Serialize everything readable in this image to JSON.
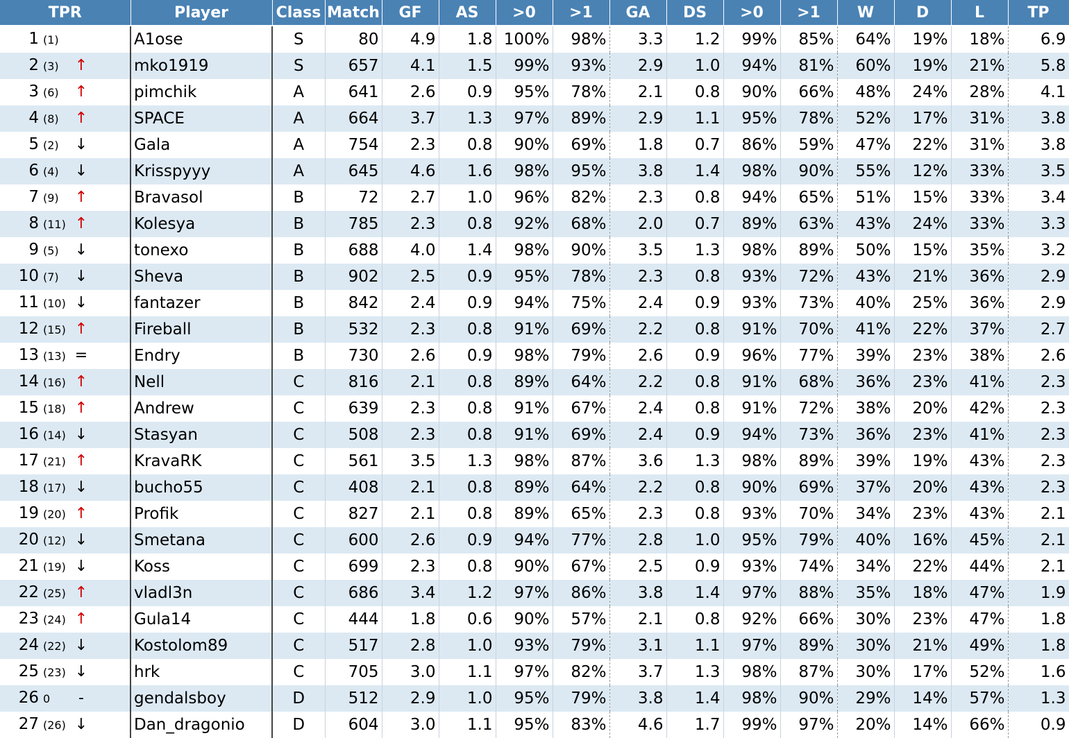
{
  "headers": [
    "TPR",
    "Player",
    "Class",
    "Match",
    "GF",
    "AS",
    ">0",
    ">1",
    "GA",
    "DS",
    ">0",
    ">1",
    "W",
    "D",
    "L",
    "TP"
  ],
  "rows": [
    {
      "rank": "1",
      "prev": "(1)",
      "trend": "",
      "trend_type": "none",
      "player": "A1ose",
      "class": "S",
      "match": "80",
      "gf": "4.9",
      "as": "1.8",
      "gf0": "100%",
      "gf1": "98%",
      "ga": "3.3",
      "ds": "1.2",
      "ga0": "99%",
      "ga1": "85%",
      "w": "64%",
      "d": "19%",
      "l": "18%",
      "tp": "6.9"
    },
    {
      "rank": "2",
      "prev": "(3)",
      "trend": "↑",
      "trend_type": "up",
      "player": "mko1919",
      "class": "S",
      "match": "657",
      "gf": "4.1",
      "as": "1.5",
      "gf0": "99%",
      "gf1": "93%",
      "ga": "2.9",
      "ds": "1.0",
      "ga0": "94%",
      "ga1": "81%",
      "w": "60%",
      "d": "19%",
      "l": "21%",
      "tp": "5.8"
    },
    {
      "rank": "3",
      "prev": "(6)",
      "trend": "↑",
      "trend_type": "up",
      "player": "pimchik",
      "class": "A",
      "match": "641",
      "gf": "2.6",
      "as": "0.9",
      "gf0": "95%",
      "gf1": "78%",
      "ga": "2.1",
      "ds": "0.8",
      "ga0": "90%",
      "ga1": "66%",
      "w": "48%",
      "d": "24%",
      "l": "28%",
      "tp": "4.1"
    },
    {
      "rank": "4",
      "prev": "(8)",
      "trend": "↑",
      "trend_type": "up",
      "player": "SPACE",
      "class": "A",
      "match": "664",
      "gf": "3.7",
      "as": "1.3",
      "gf0": "97%",
      "gf1": "89%",
      "ga": "2.9",
      "ds": "1.1",
      "ga0": "95%",
      "ga1": "78%",
      "w": "52%",
      "d": "17%",
      "l": "31%",
      "tp": "3.8"
    },
    {
      "rank": "5",
      "prev": "(2)",
      "trend": "↓",
      "trend_type": "down",
      "player": "Gala",
      "class": "A",
      "match": "754",
      "gf": "2.3",
      "as": "0.8",
      "gf0": "90%",
      "gf1": "69%",
      "ga": "1.8",
      "ds": "0.7",
      "ga0": "86%",
      "ga1": "59%",
      "w": "47%",
      "d": "22%",
      "l": "31%",
      "tp": "3.8"
    },
    {
      "rank": "6",
      "prev": "(4)",
      "trend": "↓",
      "trend_type": "down",
      "player": "Krisspyyy",
      "class": "A",
      "match": "645",
      "gf": "4.6",
      "as": "1.6",
      "gf0": "98%",
      "gf1": "95%",
      "ga": "3.8",
      "ds": "1.4",
      "ga0": "98%",
      "ga1": "90%",
      "w": "55%",
      "d": "12%",
      "l": "33%",
      "tp": "3.5"
    },
    {
      "rank": "7",
      "prev": "(9)",
      "trend": "↑",
      "trend_type": "up",
      "player": "Bravasol",
      "class": "B",
      "match": "72",
      "gf": "2.7",
      "as": "1.0",
      "gf0": "96%",
      "gf1": "82%",
      "ga": "2.3",
      "ds": "0.8",
      "ga0": "94%",
      "ga1": "65%",
      "w": "51%",
      "d": "15%",
      "l": "33%",
      "tp": "3.4"
    },
    {
      "rank": "8",
      "prev": "(11)",
      "trend": "↑",
      "trend_type": "up",
      "player": "Kolesya",
      "class": "B",
      "match": "785",
      "gf": "2.3",
      "as": "0.8",
      "gf0": "92%",
      "gf1": "68%",
      "ga": "2.0",
      "ds": "0.7",
      "ga0": "89%",
      "ga1": "63%",
      "w": "43%",
      "d": "24%",
      "l": "33%",
      "tp": "3.3"
    },
    {
      "rank": "9",
      "prev": "(5)",
      "trend": "↓",
      "trend_type": "down",
      "player": "tonexo",
      "class": "B",
      "match": "688",
      "gf": "4.0",
      "as": "1.4",
      "gf0": "98%",
      "gf1": "90%",
      "ga": "3.5",
      "ds": "1.3",
      "ga0": "98%",
      "ga1": "89%",
      "w": "50%",
      "d": "15%",
      "l": "35%",
      "tp": "3.2"
    },
    {
      "rank": "10",
      "prev": "(7)",
      "trend": "↓",
      "trend_type": "down",
      "player": "Sheva",
      "class": "B",
      "match": "902",
      "gf": "2.5",
      "as": "0.9",
      "gf0": "95%",
      "gf1": "78%",
      "ga": "2.3",
      "ds": "0.8",
      "ga0": "93%",
      "ga1": "72%",
      "w": "43%",
      "d": "21%",
      "l": "36%",
      "tp": "2.9"
    },
    {
      "rank": "11",
      "prev": "(10)",
      "trend": "↓",
      "trend_type": "down",
      "player": "fantazer",
      "class": "B",
      "match": "842",
      "gf": "2.4",
      "as": "0.9",
      "gf0": "94%",
      "gf1": "75%",
      "ga": "2.4",
      "ds": "0.9",
      "ga0": "93%",
      "ga1": "73%",
      "w": "40%",
      "d": "25%",
      "l": "36%",
      "tp": "2.9"
    },
    {
      "rank": "12",
      "prev": "(15)",
      "trend": "↑",
      "trend_type": "up",
      "player": "Fireball",
      "class": "B",
      "match": "532",
      "gf": "2.3",
      "as": "0.8",
      "gf0": "91%",
      "gf1": "69%",
      "ga": "2.2",
      "ds": "0.8",
      "ga0": "91%",
      "ga1": "70%",
      "w": "41%",
      "d": "22%",
      "l": "37%",
      "tp": "2.7"
    },
    {
      "rank": "13",
      "prev": "(13)",
      "trend": "=",
      "trend_type": "same",
      "player": "Endry",
      "class": "B",
      "match": "730",
      "gf": "2.6",
      "as": "0.9",
      "gf0": "98%",
      "gf1": "79%",
      "ga": "2.6",
      "ds": "0.9",
      "ga0": "96%",
      "ga1": "77%",
      "w": "39%",
      "d": "23%",
      "l": "38%",
      "tp": "2.6"
    },
    {
      "rank": "14",
      "prev": "(16)",
      "trend": "↑",
      "trend_type": "up",
      "player": "Nell",
      "class": "C",
      "match": "816",
      "gf": "2.1",
      "as": "0.8",
      "gf0": "89%",
      "gf1": "64%",
      "ga": "2.2",
      "ds": "0.8",
      "ga0": "91%",
      "ga1": "68%",
      "w": "36%",
      "d": "23%",
      "l": "41%",
      "tp": "2.3"
    },
    {
      "rank": "15",
      "prev": "(18)",
      "trend": "↑",
      "trend_type": "up",
      "player": "Andrew",
      "class": "C",
      "match": "639",
      "gf": "2.3",
      "as": "0.8",
      "gf0": "91%",
      "gf1": "67%",
      "ga": "2.4",
      "ds": "0.8",
      "ga0": "91%",
      "ga1": "72%",
      "w": "38%",
      "d": "20%",
      "l": "42%",
      "tp": "2.3"
    },
    {
      "rank": "16",
      "prev": "(14)",
      "trend": "↓",
      "trend_type": "down",
      "player": "Stasyan",
      "class": "C",
      "match": "508",
      "gf": "2.3",
      "as": "0.8",
      "gf0": "91%",
      "gf1": "69%",
      "ga": "2.4",
      "ds": "0.9",
      "ga0": "94%",
      "ga1": "73%",
      "w": "36%",
      "d": "23%",
      "l": "41%",
      "tp": "2.3"
    },
    {
      "rank": "17",
      "prev": "(21)",
      "trend": "↑",
      "trend_type": "up",
      "player": "KravaRK",
      "class": "C",
      "match": "561",
      "gf": "3.5",
      "as": "1.3",
      "gf0": "98%",
      "gf1": "87%",
      "ga": "3.6",
      "ds": "1.3",
      "ga0": "98%",
      "ga1": "89%",
      "w": "39%",
      "d": "19%",
      "l": "43%",
      "tp": "2.3"
    },
    {
      "rank": "18",
      "prev": "(17)",
      "trend": "↓",
      "trend_type": "down",
      "player": "bucho55",
      "class": "C",
      "match": "408",
      "gf": "2.1",
      "as": "0.8",
      "gf0": "89%",
      "gf1": "64%",
      "ga": "2.2",
      "ds": "0.8",
      "ga0": "90%",
      "ga1": "69%",
      "w": "37%",
      "d": "20%",
      "l": "43%",
      "tp": "2.3"
    },
    {
      "rank": "19",
      "prev": "(20)",
      "trend": "↑",
      "trend_type": "up",
      "player": "Profik",
      "class": "C",
      "match": "827",
      "gf": "2.1",
      "as": "0.8",
      "gf0": "89%",
      "gf1": "65%",
      "ga": "2.3",
      "ds": "0.8",
      "ga0": "93%",
      "ga1": "70%",
      "w": "34%",
      "d": "23%",
      "l": "43%",
      "tp": "2.1"
    },
    {
      "rank": "20",
      "prev": "(12)",
      "trend": "↓",
      "trend_type": "down",
      "player": "Smetana",
      "class": "C",
      "match": "600",
      "gf": "2.6",
      "as": "0.9",
      "gf0": "94%",
      "gf1": "77%",
      "ga": "2.8",
      "ds": "1.0",
      "ga0": "95%",
      "ga1": "79%",
      "w": "40%",
      "d": "16%",
      "l": "45%",
      "tp": "2.1"
    },
    {
      "rank": "21",
      "prev": "(19)",
      "trend": "↓",
      "trend_type": "down",
      "player": "Koss",
      "class": "C",
      "match": "699",
      "gf": "2.3",
      "as": "0.8",
      "gf0": "90%",
      "gf1": "67%",
      "ga": "2.5",
      "ds": "0.9",
      "ga0": "93%",
      "ga1": "74%",
      "w": "34%",
      "d": "22%",
      "l": "44%",
      "tp": "2.1"
    },
    {
      "rank": "22",
      "prev": "(25)",
      "trend": "↑",
      "trend_type": "up",
      "player": "vladl3n",
      "class": "C",
      "match": "686",
      "gf": "3.4",
      "as": "1.2",
      "gf0": "97%",
      "gf1": "86%",
      "ga": "3.8",
      "ds": "1.4",
      "ga0": "97%",
      "ga1": "88%",
      "w": "35%",
      "d": "18%",
      "l": "47%",
      "tp": "1.9"
    },
    {
      "rank": "23",
      "prev": "(24)",
      "trend": "↑",
      "trend_type": "up",
      "player": "Gula14",
      "class": "C",
      "match": "444",
      "gf": "1.8",
      "as": "0.6",
      "gf0": "90%",
      "gf1": "57%",
      "ga": "2.1",
      "ds": "0.8",
      "ga0": "92%",
      "ga1": "66%",
      "w": "30%",
      "d": "23%",
      "l": "47%",
      "tp": "1.8"
    },
    {
      "rank": "24",
      "prev": "(22)",
      "trend": "↓",
      "trend_type": "down",
      "player": "Kostolom89",
      "class": "C",
      "match": "517",
      "gf": "2.8",
      "as": "1.0",
      "gf0": "93%",
      "gf1": "79%",
      "ga": "3.1",
      "ds": "1.1",
      "ga0": "97%",
      "ga1": "89%",
      "w": "30%",
      "d": "21%",
      "l": "49%",
      "tp": "1.8"
    },
    {
      "rank": "25",
      "prev": "(23)",
      "trend": "↓",
      "trend_type": "down",
      "player": "hrk",
      "class": "C",
      "match": "705",
      "gf": "3.0",
      "as": "1.1",
      "gf0": "97%",
      "gf1": "82%",
      "ga": "3.7",
      "ds": "1.3",
      "ga0": "98%",
      "ga1": "87%",
      "w": "30%",
      "d": "17%",
      "l": "52%",
      "tp": "1.6"
    },
    {
      "rank": "26",
      "prev": "0",
      "trend": "-",
      "trend_type": "new",
      "player": "gendalsboy",
      "class": "D",
      "match": "512",
      "gf": "2.9",
      "as": "1.0",
      "gf0": "95%",
      "gf1": "79%",
      "ga": "3.8",
      "ds": "1.4",
      "ga0": "98%",
      "ga1": "90%",
      "w": "29%",
      "d": "14%",
      "l": "57%",
      "tp": "1.3"
    },
    {
      "rank": "27",
      "prev": "(26)",
      "trend": "↓",
      "trend_type": "down",
      "player": "Dan_dragonio",
      "class": "D",
      "match": "604",
      "gf": "3.0",
      "as": "1.1",
      "gf0": "95%",
      "gf1": "83%",
      "ga": "4.6",
      "ds": "1.7",
      "ga0": "99%",
      "ga1": "97%",
      "w": "20%",
      "d": "14%",
      "l": "66%",
      "tp": "0.9"
    }
  ],
  "colors": {
    "header_bg": "#4a82b4",
    "stripe": "#dce9f3",
    "up_arrow": "#d00000"
  }
}
